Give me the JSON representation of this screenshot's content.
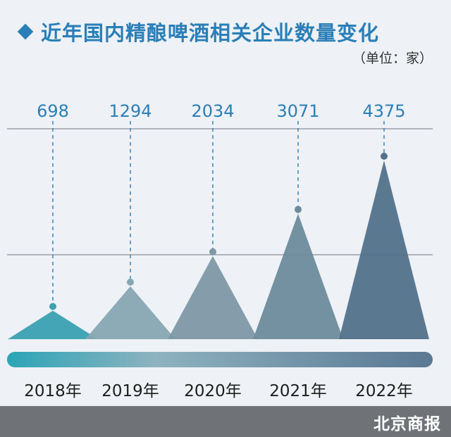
{
  "header": {
    "title": "近年国内精酿啤酒相关企业数量变化",
    "unit": "（单位：家）"
  },
  "footer": {
    "brand": "北京商报"
  },
  "colors": {
    "accent": "#2a7fb8",
    "value_text": "#2a7fb8",
    "peaks": [
      "#3aa0b2",
      "#86a7b3",
      "#7e98a6",
      "#6c8b9c",
      "#52718b"
    ]
  },
  "chart_data": {
    "type": "area",
    "title": "近年国内精酿啤酒相关企业数量变化",
    "categories": [
      "2018年",
      "2019年",
      "2020年",
      "2021年",
      "2022年"
    ],
    "values": [
      698,
      1294,
      2034,
      3071,
      4375
    ],
    "value_labels": [
      "698",
      "1294",
      "2034",
      "3071",
      "4375"
    ],
    "unit": "（单位：家）",
    "ylim": [
      0,
      4375
    ],
    "grid": true
  }
}
